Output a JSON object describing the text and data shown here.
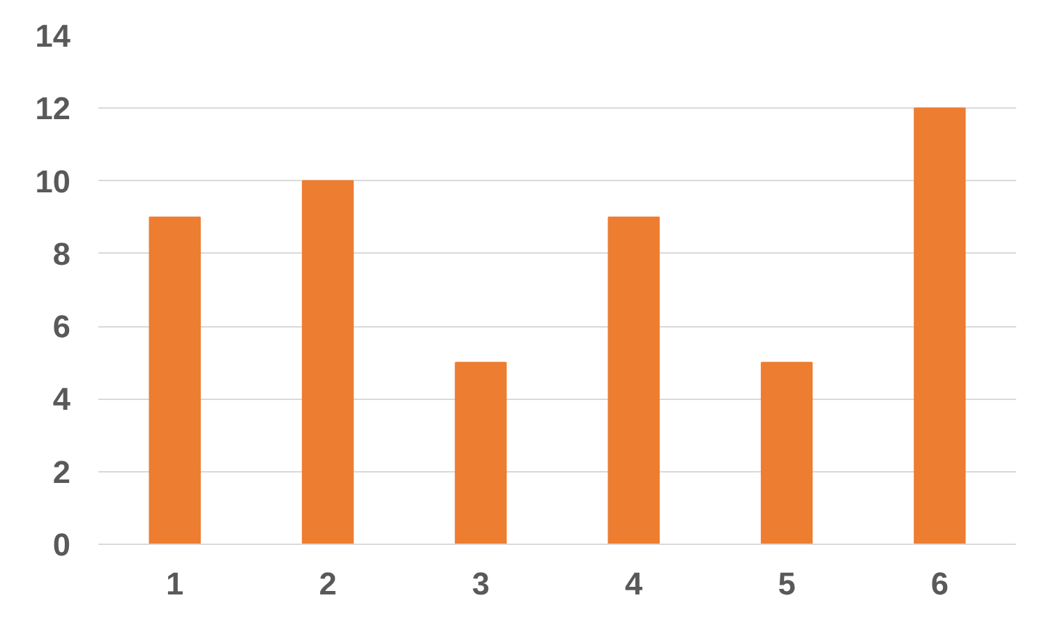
{
  "chart_data": {
    "type": "bar",
    "categories": [
      "1",
      "2",
      "3",
      "4",
      "5",
      "6"
    ],
    "values": [
      9,
      10,
      5,
      9,
      5,
      12
    ],
    "color": "#ed7d31",
    "ylim": [
      0,
      14
    ],
    "yticks": [
      0,
      2,
      4,
      6,
      8,
      10,
      12,
      14
    ],
    "grid": "y"
  }
}
